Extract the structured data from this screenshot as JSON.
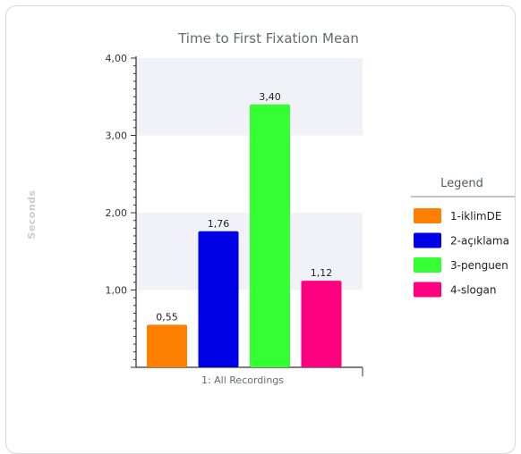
{
  "chart_data": {
    "type": "bar",
    "title": "Time to First Fixation Mean",
    "ylabel": "Seconds",
    "xlabel": "1: All Recordings",
    "ylim": [
      0,
      4
    ],
    "yticks": [
      "1,00",
      "2,00",
      "3,00",
      "4,00"
    ],
    "ytick_values": [
      1,
      2,
      3,
      4
    ],
    "legend_title": "Legend",
    "legend_position": "right",
    "grid_bands": true,
    "series": [
      {
        "name": "1-iklimDE",
        "value": 0.55,
        "label": "0,55",
        "color": "#ff8000"
      },
      {
        "name": "2-açıklama",
        "value": 1.76,
        "label": "1,76",
        "color": "#0000e6"
      },
      {
        "name": "3-penguen",
        "value": 3.4,
        "label": "3,40",
        "color": "#33ff33"
      },
      {
        "name": "4-slogan",
        "value": 1.12,
        "label": "1,12",
        "color": "#ff0080"
      }
    ]
  }
}
